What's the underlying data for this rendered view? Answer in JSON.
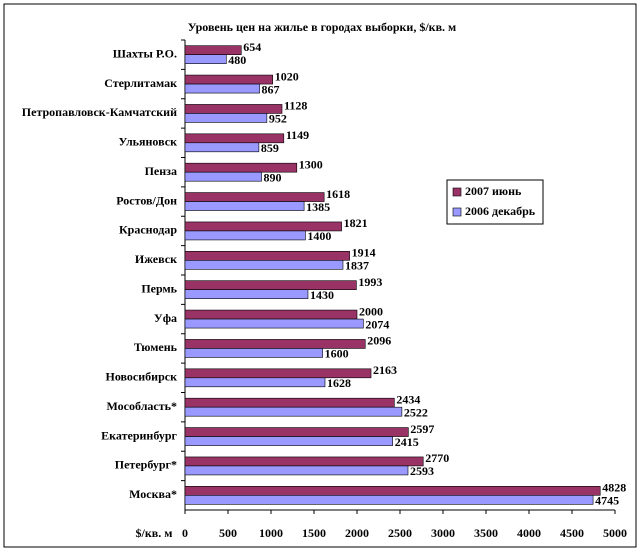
{
  "chart_data": {
    "type": "hbar",
    "title": "Уровень цен на жилье в городах выборки, $/кв. м",
    "x_label": "$/кв. м",
    "categories": [
      "Шахты Р.О.",
      "Стерлитамак",
      "Петропавловск-Камчатский",
      "Ульяновск",
      "Пенза",
      "Ростов/Дон",
      "Краснодар",
      "Ижевск",
      "Пермь",
      "Уфа",
      "Тюмень",
      "Новосибирск",
      "Мособласть*",
      "Екатеринбург",
      "Петербург*",
      "Москва*"
    ],
    "series": [
      {
        "name": "2007 июнь",
        "color": "#993366",
        "values": [
          654,
          1020,
          1128,
          1149,
          1300,
          1618,
          1821,
          1914,
          1993,
          2000,
          2096,
          2163,
          2434,
          2597,
          2770,
          4828
        ]
      },
      {
        "name": "2006 декабрь",
        "color": "#9999ff",
        "values": [
          480,
          867,
          952,
          859,
          890,
          1385,
          1400,
          1837,
          1430,
          2074,
          1600,
          1628,
          2522,
          2415,
          2593,
          4745
        ]
      }
    ],
    "xlim": [
      0,
      5000
    ],
    "xticks": [
      0,
      500,
      1000,
      1500,
      2000,
      2500,
      3000,
      3500,
      4000,
      4500,
      5000
    ],
    "grid": false,
    "legend": "right"
  }
}
